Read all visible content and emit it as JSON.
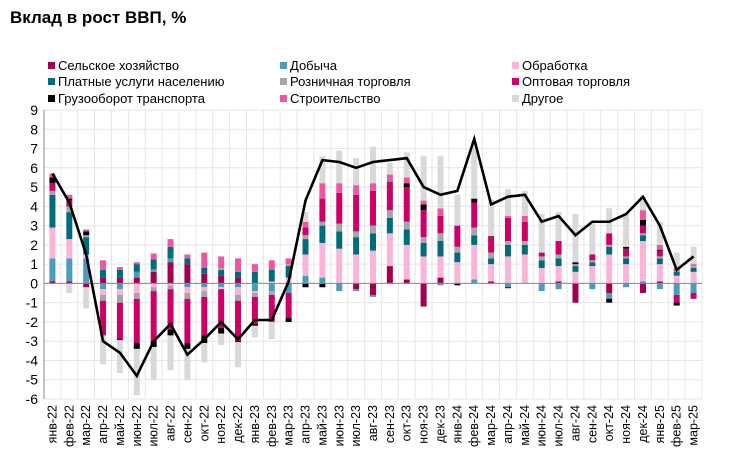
{
  "title": "Вклад в рост ВВП, %",
  "chart_data": {
    "type": "bar",
    "subtype": "stacked bar with line",
    "title": "Вклад в рост ВВП, %",
    "xlabel": "",
    "ylabel": "",
    "ylim": [
      -6,
      9
    ],
    "yticks": [
      "9",
      "8",
      "7",
      "6",
      "5",
      "4",
      "3",
      "2",
      "1",
      "0",
      "-1",
      "-2",
      "-3",
      "-4",
      "-5",
      "-6"
    ],
    "grid": true,
    "legend_position": "top",
    "categories": [
      "янв-22",
      "фев-22",
      "мар-22",
      "апр-22",
      "май-22",
      "июн-22",
      "июл-22",
      "авг-22",
      "сен-22",
      "окт-22",
      "ноя-22",
      "дек-22",
      "янв-23",
      "фев-23",
      "мар-23",
      "апр-23",
      "май-23",
      "июн-23",
      "июл-23",
      "авг-23",
      "сен-23",
      "окт-23",
      "ноя-23",
      "дек-23",
      "янв-24",
      "фев-24",
      "мар-24",
      "апр-24",
      "май-24",
      "июн-24",
      "июл-24",
      "авг-24",
      "сен-24",
      "окт-24",
      "ноя-24",
      "дек-24",
      "янв-25",
      "фев-25",
      "мар-25"
    ],
    "series": [
      {
        "name": "Сельское хозяйство",
        "color": "#a3004f",
        "values": [
          0.1,
          0.1,
          -0.2,
          0.3,
          0.3,
          0.3,
          0.6,
          1.1,
          1.0,
          0.5,
          0.4,
          0.3,
          0,
          0,
          0,
          0,
          0,
          0,
          -0.3,
          -0.6,
          0.9,
          0.2,
          -1.2,
          0.3,
          0,
          0,
          0.1,
          0,
          0,
          0,
          0.1,
          -1.0,
          0,
          -0.5,
          0,
          -0.5,
          0.1,
          0,
          0
        ]
      },
      {
        "name": "Добыча",
        "color": "#4a9cbd",
        "values": [
          1.2,
          1.2,
          1.3,
          -0.3,
          -0.3,
          0.3,
          0.15,
          0.2,
          -0.2,
          -0.2,
          -0.2,
          -0.2,
          -0.4,
          -0.4,
          -0.5,
          0.4,
          0.3,
          -0.4,
          -0.1,
          -0.1,
          0,
          0,
          0,
          -0.1,
          0,
          0.2,
          0,
          -0.2,
          0,
          -0.4,
          -0.3,
          0,
          -0.3,
          -0.3,
          -0.2,
          0.1,
          -0.3,
          -0.6,
          -0.5
        ]
      },
      {
        "name": "Обработка",
        "color": "#f9b4d6",
        "values": [
          1.6,
          1.0,
          0.2,
          -0.3,
          -0.3,
          -0.5,
          -0.2,
          -0.1,
          -0.3,
          -0.2,
          -0.1,
          -0.4,
          -0.1,
          0.1,
          0.3,
          1.1,
          1.8,
          1.8,
          1.5,
          1.7,
          1.7,
          1.8,
          1.4,
          1.1,
          1.1,
          1.8,
          0.9,
          1.4,
          1.5,
          0.8,
          0.8,
          0.6,
          0.9,
          1.5,
          1.0,
          2.1,
          0.9,
          0.4,
          0.6
        ]
      },
      {
        "name": "Платные услуги населению",
        "color": "#006b7d",
        "values": [
          1.7,
          1.4,
          0.9,
          0.4,
          0.4,
          0.4,
          0.5,
          0.6,
          0.3,
          0.3,
          0.3,
          0.3,
          0.6,
          0.6,
          0.6,
          0.8,
          0.9,
          0.9,
          0.9,
          0.9,
          0.8,
          0.8,
          0.7,
          0.8,
          0.5,
          0.5,
          0.3,
          0.6,
          0.5,
          0.4,
          0.4,
          0.3,
          0.2,
          0.4,
          0.3,
          0.3,
          0.3,
          0.2,
          0.2
        ]
      },
      {
        "name": "Розничная торговля",
        "color": "#a6a6a6",
        "values": [
          0.2,
          0.3,
          0.1,
          -0.3,
          -0.4,
          -0.3,
          -0.2,
          -0.2,
          -0.3,
          -0.3,
          0.1,
          -0.3,
          -0.2,
          -0.2,
          0.1,
          0.2,
          0.2,
          0.4,
          0.3,
          0.4,
          0.4,
          0.4,
          0.3,
          0.4,
          0.3,
          0.4,
          0.3,
          0.2,
          0.2,
          0.2,
          0.2,
          0.1,
          0.1,
          0.1,
          0.1,
          0.1,
          0.1,
          0,
          0.1
        ]
      },
      {
        "name": "Оптовая торговля",
        "color": "#cc0066",
        "values": [
          0.4,
          0.3,
          0,
          -1.8,
          -1.9,
          -2.3,
          -2.6,
          -2.1,
          -2.3,
          -2.0,
          -2.0,
          -2.1,
          -1.4,
          -1.4,
          -1.3,
          0.4,
          1.2,
          1.6,
          1.9,
          1.8,
          1.4,
          1.8,
          1.4,
          0.9,
          1.1,
          1.3,
          0.8,
          1.2,
          1.0,
          0.2,
          0.7,
          0,
          0.3,
          0.6,
          0.4,
          0.4,
          0.3,
          -0.4,
          -0.3
        ]
      },
      {
        "name": "Грузооборот транспорта",
        "color": "#000000",
        "values": [
          0.3,
          0.1,
          0.2,
          0,
          -0.05,
          -0.3,
          -0.3,
          -0.3,
          -0.3,
          -0.4,
          -0.3,
          -0.05,
          -0.1,
          0,
          -0.2,
          -0.2,
          -0.2,
          0,
          0,
          0,
          0.05,
          0.2,
          0.3,
          0,
          -0.1,
          0.2,
          0.05,
          -0.05,
          0,
          0,
          0,
          0.1,
          0,
          -0.2,
          0.1,
          0.3,
          0.05,
          -0.15,
          0
        ]
      },
      {
        "name": "Строительство",
        "color": "#f0559f",
        "values": [
          0.2,
          0.2,
          0.1,
          0.5,
          0.15,
          0.1,
          0.3,
          0.4,
          0.2,
          0.8,
          0.6,
          0.7,
          0.4,
          0.5,
          0.3,
          0.3,
          0.8,
          0.5,
          0.5,
          0.4,
          0.4,
          0.3,
          0.2,
          0.4,
          0,
          0,
          0,
          0.1,
          0.3,
          0,
          0,
          0,
          0,
          0,
          0,
          0.5,
          0.25,
          0.2,
          0.1
        ]
      },
      {
        "name": "Другое",
        "color": "#d9d9d9",
        "values": [
          0,
          -0.5,
          -1.1,
          -1.5,
          -1.7,
          -2.4,
          -1.7,
          -1.8,
          -1.6,
          -1.0,
          -0.6,
          -1.3,
          -0.6,
          -0.9,
          0,
          0.5,
          1.4,
          1.7,
          1.4,
          1.9,
          0.6,
          1.3,
          2.3,
          2.7,
          1.6,
          2.9,
          1.9,
          1.4,
          1.3,
          2.0,
          1.5,
          2.5,
          1.6,
          1.3,
          1.7,
          0.7,
          1.2,
          0.8,
          0.9
        ]
      }
    ],
    "line": {
      "values": [
        5.7,
        4.2,
        1.5,
        -3.0,
        -3.6,
        -4.8,
        -3.0,
        -2.1,
        -3.7,
        -2.9,
        -2.0,
        -2.9,
        -1.9,
        -1.9,
        0.1,
        4.3,
        6.4,
        6.3,
        6.0,
        6.3,
        6.4,
        6.5,
        5.0,
        4.6,
        4.8,
        7.5,
        4.1,
        4.5,
        4.6,
        3.2,
        3.5,
        2.5,
        3.2,
        3.2,
        3.6,
        4.5,
        3.0,
        0.7,
        1.4
      ],
      "color": "#000000"
    }
  }
}
